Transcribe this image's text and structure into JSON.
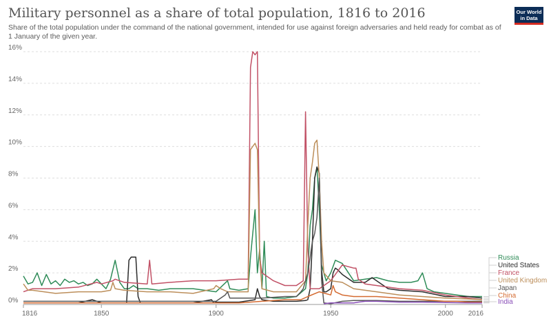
{
  "header": {
    "title": "Military personnel as a share of total population, 1816 to 2016",
    "subtitle": "Share of the total population under the command of the national government, intended for use against foreign adversaries and held ready for combat as of 1 January of the given year.",
    "logo_line1": "Our World",
    "logo_line2": "in Data"
  },
  "chart_data": {
    "type": "line",
    "title": "Military personnel as a share of total population, 1816 to 2016",
    "xlim": [
      1816,
      2016
    ],
    "ylim": [
      0,
      16
    ],
    "x_ticks": [
      1816,
      1850,
      1900,
      1950,
      2000,
      2016
    ],
    "x_tick_labels": [
      "1816",
      "1850",
      "1900",
      "1950",
      "2000",
      "2016"
    ],
    "y_ticks": [
      0,
      2,
      4,
      6,
      8,
      10,
      12,
      14,
      16
    ],
    "y_tick_labels": [
      "0%",
      "2%",
      "4%",
      "6%",
      "8%",
      "10%",
      "12%",
      "14%",
      "16%"
    ],
    "grid": true,
    "legend_position": "right",
    "series": [
      {
        "name": "Russia",
        "color": "#2e8b57",
        "x": [
          1816,
          1818,
          1820,
          1822,
          1824,
          1826,
          1828,
          1830,
          1832,
          1834,
          1836,
          1838,
          1840,
          1842,
          1844,
          1846,
          1848,
          1850,
          1852,
          1854,
          1856,
          1858,
          1860,
          1862,
          1864,
          1866,
          1868,
          1870,
          1875,
          1880,
          1885,
          1890,
          1895,
          1900,
          1905,
          1906,
          1910,
          1914,
          1915,
          1917,
          1918,
          1919,
          1920,
          1921,
          1922,
          1925,
          1930,
          1935,
          1939,
          1940,
          1941,
          1942,
          1943,
          1944,
          1945,
          1946,
          1947,
          1948,
          1950,
          1952,
          1955,
          1960,
          1965,
          1970,
          1975,
          1980,
          1985,
          1988,
          1990,
          1992,
          1995,
          2000,
          2005,
          2010,
          2016
        ],
        "y": [
          1.8,
          1.3,
          1.4,
          2.0,
          1.2,
          1.9,
          1.3,
          1.5,
          1.2,
          1.6,
          1.4,
          1.5,
          1.3,
          1.4,
          1.2,
          1.3,
          1.6,
          1.3,
          1.0,
          1.6,
          2.8,
          1.4,
          1.0,
          1.0,
          1.2,
          1.0,
          1.0,
          1.0,
          0.9,
          1.0,
          1.0,
          1.0,
          0.9,
          0.8,
          1.5,
          1.0,
          0.9,
          1.0,
          3.0,
          6.0,
          2.0,
          3.5,
          1.0,
          4.0,
          0.5,
          0.4,
          0.4,
          0.5,
          1.0,
          2.0,
          5.0,
          6.0,
          8.0,
          8.7,
          6.0,
          2.5,
          2.0,
          1.5,
          2.0,
          2.8,
          2.6,
          1.5,
          1.6,
          1.7,
          1.5,
          1.4,
          1.4,
          1.5,
          2.0,
          1.0,
          0.8,
          0.7,
          0.6,
          0.5,
          0.5
        ]
      },
      {
        "name": "United States",
        "color": "#2b2b2b",
        "x": [
          1816,
          1820,
          1830,
          1840,
          1846,
          1850,
          1855,
          1860,
          1861,
          1862,
          1863,
          1864,
          1865,
          1866,
          1867,
          1870,
          1880,
          1890,
          1898,
          1899,
          1900,
          1910,
          1917,
          1918,
          1919,
          1920,
          1925,
          1930,
          1935,
          1939,
          1940,
          1941,
          1942,
          1943,
          1944,
          1945,
          1946,
          1947,
          1948,
          1950,
          1951,
          1952,
          1953,
          1955,
          1960,
          1965,
          1968,
          1970,
          1975,
          1980,
          1990,
          2000,
          2005,
          2010,
          2016
        ],
        "y": [
          0.1,
          0.1,
          0.1,
          0.1,
          0.3,
          0.1,
          0.1,
          0.1,
          0.1,
          2.8,
          3.0,
          3.0,
          3.0,
          0.5,
          0.1,
          0.1,
          0.1,
          0.1,
          0.3,
          0.1,
          0.15,
          0.15,
          0.3,
          1.0,
          0.5,
          0.3,
          0.2,
          0.2,
          0.2,
          0.25,
          0.3,
          1.0,
          4.0,
          8.0,
          8.7,
          8.3,
          2.2,
          0.8,
          0.8,
          1.0,
          2.0,
          2.3,
          2.2,
          1.9,
          1.4,
          1.4,
          1.7,
          1.5,
          1.0,
          0.9,
          0.8,
          0.5,
          0.5,
          0.5,
          0.4
        ]
      },
      {
        "name": "France",
        "color": "#c15065",
        "x": [
          1816,
          1820,
          1830,
          1840,
          1848,
          1850,
          1855,
          1856,
          1860,
          1870,
          1871,
          1872,
          1880,
          1890,
          1900,
          1910,
          1913,
          1914,
          1915,
          1916,
          1917,
          1918,
          1919,
          1920,
          1925,
          1930,
          1935,
          1938,
          1939,
          1940,
          1941,
          1945,
          1950,
          1955,
          1960,
          1961,
          1962,
          1965,
          1970,
          1980,
          1990,
          2000,
          2010,
          2016
        ],
        "y": [
          0.8,
          1.0,
          1.0,
          1.1,
          1.4,
          1.3,
          1.5,
          1.6,
          1.4,
          1.3,
          2.8,
          1.3,
          1.4,
          1.5,
          1.5,
          1.6,
          1.6,
          1.6,
          15.0,
          16.0,
          15.8,
          16.0,
          3.0,
          2.0,
          1.5,
          1.2,
          1.2,
          1.5,
          12.2,
          3.5,
          1.0,
          1.0,
          1.5,
          2.5,
          2.3,
          2.3,
          1.6,
          1.3,
          1.2,
          1.0,
          0.9,
          0.6,
          0.4,
          0.3
        ]
      },
      {
        "name": "United Kingdom",
        "color": "#bc8e5a",
        "x": [
          1816,
          1818,
          1820,
          1830,
          1840,
          1850,
          1854,
          1855,
          1856,
          1860,
          1870,
          1880,
          1890,
          1899,
          1900,
          1902,
          1905,
          1910,
          1914,
          1915,
          1916,
          1917,
          1918,
          1919,
          1920,
          1925,
          1930,
          1935,
          1939,
          1940,
          1941,
          1942,
          1943,
          1944,
          1945,
          1946,
          1947,
          1950,
          1955,
          1960,
          1965,
          1970,
          1980,
          1990,
          2000,
          2010,
          2016
        ],
        "y": [
          1.3,
          0.9,
          0.9,
          0.7,
          0.8,
          0.8,
          0.9,
          1.4,
          1.0,
          0.9,
          0.8,
          0.8,
          0.7,
          1.0,
          1.2,
          1.0,
          0.8,
          0.8,
          0.8,
          9.8,
          10.0,
          10.2,
          9.8,
          3.0,
          1.0,
          0.8,
          0.8,
          0.8,
          1.5,
          5.0,
          8.0,
          9.0,
          10.2,
          10.4,
          8.0,
          4.0,
          2.0,
          1.5,
          1.4,
          1.0,
          0.9,
          0.8,
          0.6,
          0.5,
          0.4,
          0.35,
          0.3
        ]
      },
      {
        "name": "Japan",
        "color": "#555555",
        "x": [
          1816,
          1870,
          1880,
          1890,
          1900,
          1904,
          1905,
          1906,
          1910,
          1920,
          1930,
          1935,
          1937,
          1938,
          1940,
          1941,
          1942,
          1943,
          1944,
          1945,
          1946,
          1947,
          1950,
          1955,
          1960,
          1970,
          1980,
          1990,
          2000,
          2010,
          2016
        ],
        "y": [
          0.2,
          0.2,
          0.2,
          0.2,
          0.2,
          0.6,
          0.8,
          0.4,
          0.4,
          0.4,
          0.5,
          0.5,
          0.8,
          1.0,
          2.0,
          3.0,
          4.0,
          4.5,
          5.5,
          8.0,
          1.5,
          0.1,
          0.05,
          0.2,
          0.25,
          0.25,
          0.2,
          0.2,
          0.2,
          0.2,
          0.2
        ]
      },
      {
        "name": "China",
        "color": "#d46a30",
        "x": [
          1816,
          1850,
          1900,
          1910,
          1920,
          1930,
          1937,
          1940,
          1945,
          1950,
          1951,
          1952,
          1955,
          1960,
          1970,
          1980,
          1990,
          2000,
          2005,
          2010,
          2016
        ],
        "y": [
          0.1,
          0.1,
          0.1,
          0.1,
          0.2,
          0.3,
          0.3,
          0.5,
          0.8,
          0.6,
          1.2,
          0.8,
          0.6,
          0.5,
          0.5,
          0.4,
          0.3,
          0.2,
          0.2,
          0.15,
          0.15
        ]
      },
      {
        "name": "India",
        "color": "#8a4fb8",
        "x": [
          1947,
          1950,
          1955,
          1960,
          1962,
          1965,
          1970,
          1980,
          1990,
          2000,
          2010,
          2016
        ],
        "y": [
          0.05,
          0.1,
          0.1,
          0.1,
          0.15,
          0.2,
          0.2,
          0.15,
          0.15,
          0.12,
          0.1,
          0.1
        ]
      }
    ]
  }
}
